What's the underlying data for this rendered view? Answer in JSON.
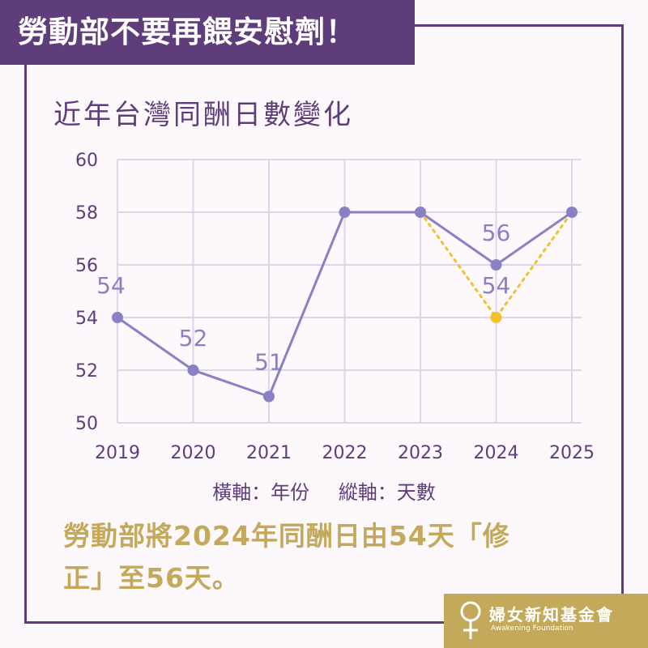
{
  "header": {
    "banner": "勞動部不要再餵安慰劑！"
  },
  "chart_data": {
    "type": "line",
    "title": "近年台灣同酬日數變化",
    "categories": [
      "2019",
      "2020",
      "2021",
      "2022",
      "2023",
      "2024",
      "2025"
    ],
    "series": [
      {
        "values": [
          54,
          52,
          51,
          58,
          58,
          56,
          58
        ],
        "color": "#8a80c4",
        "style": "solid"
      },
      {
        "x": [
          "2023",
          "2024",
          "2025"
        ],
        "values": [
          58,
          54,
          58
        ],
        "color": "#f2c12e",
        "style": "dotted"
      }
    ],
    "data_labels": [
      {
        "x": "2019",
        "text": "54"
      },
      {
        "x": "2020",
        "text": "52"
      },
      {
        "x": "2021",
        "text": "51"
      },
      {
        "x": "2024",
        "text": "56"
      },
      {
        "x": "2024",
        "text": "54"
      }
    ],
    "yticks": [
      50,
      52,
      54,
      56,
      58,
      60
    ],
    "ylim": [
      50,
      60
    ],
    "grid": true,
    "xlabel_caption": "橫軸：年份",
    "ylabel_caption": "縱軸：天數"
  },
  "note": {
    "line1": "勞動部將2024年同酬日由54天「修",
    "line2": "正」至56天。"
  },
  "logo": {
    "name": "婦女新知基金會",
    "subtitle": "Awakening Foundation"
  }
}
